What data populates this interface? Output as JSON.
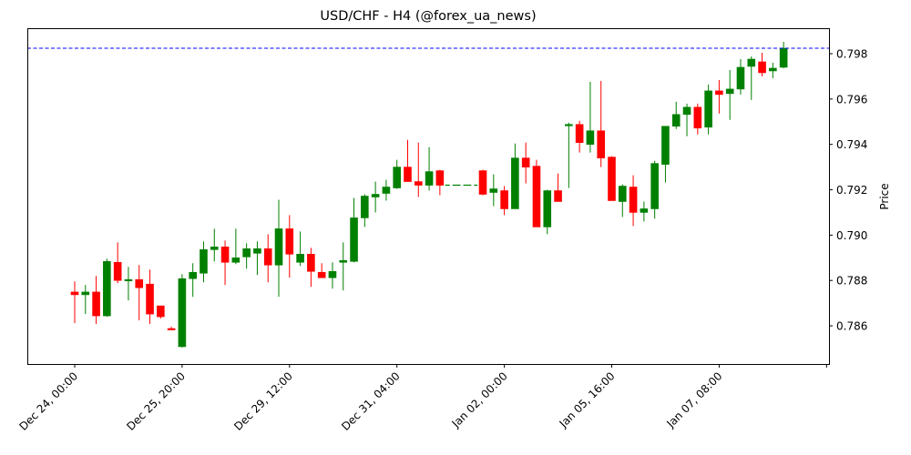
{
  "chart_data": {
    "type": "candlestick",
    "title": "USD/CHF - H4 (@forex_ua_news)",
    "xlabel": "",
    "ylabel": "Price",
    "ylim": [
      0.78448,
      0.7991
    ],
    "y_ticks": [
      0.786,
      0.788,
      0.79,
      0.792,
      0.794,
      0.796,
      0.798
    ],
    "y_tick_labels": [
      "0.786",
      "0.788",
      "0.790",
      "0.792",
      "0.794",
      "0.796",
      "0.798"
    ],
    "x_tick_indices": [
      0,
      10,
      20,
      30,
      40,
      50,
      60,
      70
    ],
    "x_tick_labels": [
      "Dec 24, 00:00",
      "Dec 25, 20:00",
      "Dec 29, 12:00",
      "Dec 31, 04:00",
      "Jan 02, 00:00",
      "Jan 05, 16:00",
      "Jan 07, 08:00",
      ""
    ],
    "grid": false,
    "reference_line": {
      "price": 0.79824,
      "color": "#0000ff",
      "style": "dashed"
    },
    "colors": {
      "up": "#008000",
      "down": "#ff0000"
    },
    "candles": [
      {
        "o": 0.78749,
        "h": 0.78796,
        "l": 0.78612,
        "c": 0.78737
      },
      {
        "o": 0.78737,
        "h": 0.7878,
        "l": 0.78652,
        "c": 0.78749
      },
      {
        "o": 0.78749,
        "h": 0.7882,
        "l": 0.78608,
        "c": 0.78644
      },
      {
        "o": 0.78644,
        "h": 0.78896,
        "l": 0.7864,
        "c": 0.78884
      },
      {
        "o": 0.7888,
        "h": 0.78968,
        "l": 0.78788,
        "c": 0.788
      },
      {
        "o": 0.788,
        "h": 0.7886,
        "l": 0.78712,
        "c": 0.78804
      },
      {
        "o": 0.78804,
        "h": 0.78868,
        "l": 0.78624,
        "c": 0.78768
      },
      {
        "o": 0.78784,
        "h": 0.78848,
        "l": 0.78608,
        "c": 0.78652
      },
      {
        "o": 0.78688,
        "h": 0.78688,
        "l": 0.78632,
        "c": 0.7864
      },
      {
        "o": 0.78588,
        "h": 0.78596,
        "l": 0.7858,
        "c": 0.78584
      },
      {
        "o": 0.78508,
        "h": 0.78828,
        "l": 0.78504,
        "c": 0.78808
      },
      {
        "o": 0.78808,
        "h": 0.78876,
        "l": 0.78728,
        "c": 0.78836
      },
      {
        "o": 0.78832,
        "h": 0.78972,
        "l": 0.78792,
        "c": 0.78936
      },
      {
        "o": 0.78936,
        "h": 0.79028,
        "l": 0.78884,
        "c": 0.78948
      },
      {
        "o": 0.78948,
        "h": 0.78976,
        "l": 0.7878,
        "c": 0.7888
      },
      {
        "o": 0.7888,
        "h": 0.79028,
        "l": 0.78872,
        "c": 0.789
      },
      {
        "o": 0.78904,
        "h": 0.78964,
        "l": 0.78852,
        "c": 0.7894
      },
      {
        "o": 0.7892,
        "h": 0.78972,
        "l": 0.78824,
        "c": 0.7894
      },
      {
        "o": 0.7894,
        "h": 0.79004,
        "l": 0.78792,
        "c": 0.78868
      },
      {
        "o": 0.78868,
        "h": 0.79156,
        "l": 0.78728,
        "c": 0.79028
      },
      {
        "o": 0.79028,
        "h": 0.79088,
        "l": 0.78812,
        "c": 0.78916
      },
      {
        "o": 0.7888,
        "h": 0.79016,
        "l": 0.78864,
        "c": 0.78916
      },
      {
        "o": 0.78916,
        "h": 0.78944,
        "l": 0.78772,
        "c": 0.7884
      },
      {
        "o": 0.78836,
        "h": 0.78876,
        "l": 0.78812,
        "c": 0.78812
      },
      {
        "o": 0.78812,
        "h": 0.7888,
        "l": 0.78764,
        "c": 0.7884
      },
      {
        "o": 0.7888,
        "h": 0.78968,
        "l": 0.78756,
        "c": 0.78888
      },
      {
        "o": 0.78884,
        "h": 0.79164,
        "l": 0.7888,
        "c": 0.79076
      },
      {
        "o": 0.79076,
        "h": 0.7918,
        "l": 0.79036,
        "c": 0.79172
      },
      {
        "o": 0.79168,
        "h": 0.79236,
        "l": 0.791,
        "c": 0.7918
      },
      {
        "o": 0.79184,
        "h": 0.79244,
        "l": 0.79152,
        "c": 0.79212
      },
      {
        "o": 0.79208,
        "h": 0.79332,
        "l": 0.79204,
        "c": 0.793
      },
      {
        "o": 0.793,
        "h": 0.7942,
        "l": 0.79236,
        "c": 0.79236
      },
      {
        "o": 0.79236,
        "h": 0.79408,
        "l": 0.79168,
        "c": 0.7922
      },
      {
        "o": 0.7922,
        "h": 0.79388,
        "l": 0.79196,
        "c": 0.7928
      },
      {
        "o": 0.79284,
        "h": 0.79288,
        "l": 0.79176,
        "c": 0.7922
      },
      {
        "o": 0.7922,
        "h": 0.7922,
        "l": 0.7922,
        "c": 0.7922
      },
      {
        "o": 0.7922,
        "h": 0.7922,
        "l": 0.7922,
        "c": 0.7922
      },
      {
        "o": 0.7922,
        "h": 0.7922,
        "l": 0.7922,
        "c": 0.7922
      },
      {
        "o": 0.79284,
        "h": 0.79288,
        "l": 0.79176,
        "c": 0.7918
      },
      {
        "o": 0.79188,
        "h": 0.79268,
        "l": 0.79128,
        "c": 0.79204
      },
      {
        "o": 0.79196,
        "h": 0.79216,
        "l": 0.79088,
        "c": 0.79116
      },
      {
        "o": 0.79116,
        "h": 0.79404,
        "l": 0.79116,
        "c": 0.7934
      },
      {
        "o": 0.7934,
        "h": 0.79408,
        "l": 0.79228,
        "c": 0.793
      },
      {
        "o": 0.79304,
        "h": 0.79332,
        "l": 0.79036,
        "c": 0.79036
      },
      {
        "o": 0.79036,
        "h": 0.792,
        "l": 0.79004,
        "c": 0.79196
      },
      {
        "o": 0.79196,
        "h": 0.79272,
        "l": 0.79148,
        "c": 0.79148
      },
      {
        "o": 0.79488,
        "h": 0.79496,
        "l": 0.79208,
        "c": 0.79488
      },
      {
        "o": 0.79488,
        "h": 0.79504,
        "l": 0.79364,
        "c": 0.79408
      },
      {
        "o": 0.794,
        "h": 0.79676,
        "l": 0.79364,
        "c": 0.7946
      },
      {
        "o": 0.7946,
        "h": 0.7968,
        "l": 0.793,
        "c": 0.7934
      },
      {
        "o": 0.79344,
        "h": 0.79348,
        "l": 0.79152,
        "c": 0.79152
      },
      {
        "o": 0.79148,
        "h": 0.79224,
        "l": 0.7908,
        "c": 0.79216
      },
      {
        "o": 0.79212,
        "h": 0.79264,
        "l": 0.7904,
        "c": 0.791
      },
      {
        "o": 0.791,
        "h": 0.79148,
        "l": 0.7906,
        "c": 0.79116
      },
      {
        "o": 0.79116,
        "h": 0.79328,
        "l": 0.79072,
        "c": 0.79316
      },
      {
        "o": 0.79312,
        "h": 0.7948,
        "l": 0.79232,
        "c": 0.7948
      },
      {
        "o": 0.7948,
        "h": 0.79588,
        "l": 0.79468,
        "c": 0.79532
      },
      {
        "o": 0.79532,
        "h": 0.7958,
        "l": 0.79436,
        "c": 0.79564
      },
      {
        "o": 0.79564,
        "h": 0.7958,
        "l": 0.79444,
        "c": 0.79472
      },
      {
        "o": 0.79476,
        "h": 0.79664,
        "l": 0.79444,
        "c": 0.79636
      },
      {
        "o": 0.79636,
        "h": 0.79684,
        "l": 0.79536,
        "c": 0.7962
      },
      {
        "o": 0.79624,
        "h": 0.79728,
        "l": 0.79508,
        "c": 0.79644
      },
      {
        "o": 0.79644,
        "h": 0.79776,
        "l": 0.7962,
        "c": 0.7974
      },
      {
        "o": 0.79744,
        "h": 0.79788,
        "l": 0.79596,
        "c": 0.79776
      },
      {
        "o": 0.79764,
        "h": 0.79804,
        "l": 0.797,
        "c": 0.79716
      },
      {
        "o": 0.79724,
        "h": 0.7976,
        "l": 0.79692,
        "c": 0.79736
      },
      {
        "o": 0.7974,
        "h": 0.79852,
        "l": 0.79736,
        "c": 0.79824
      }
    ]
  }
}
